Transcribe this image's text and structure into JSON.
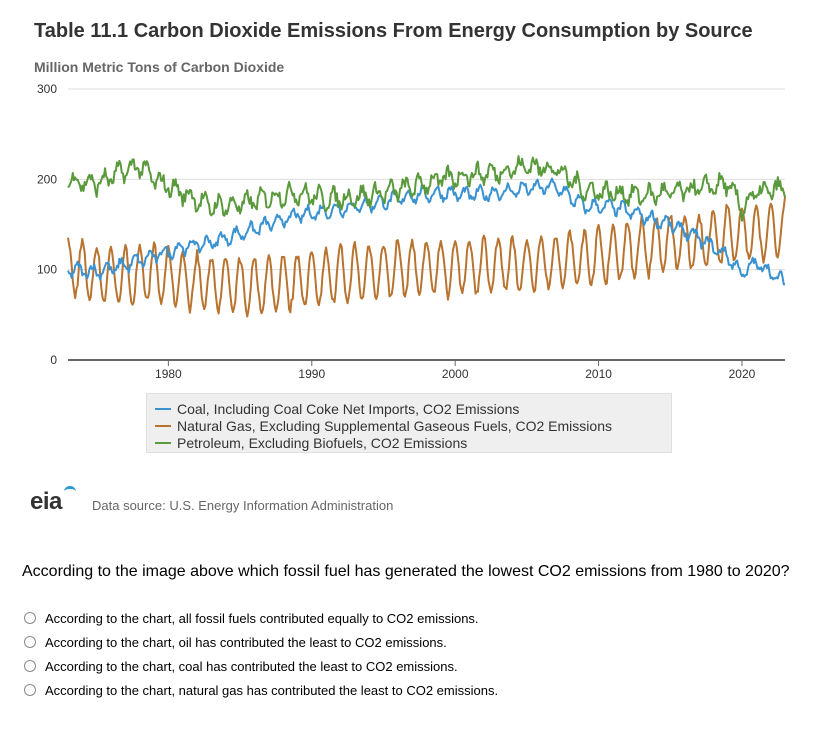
{
  "chart_data": {
    "type": "line",
    "title": "Table 11.1 Carbon Dioxide Emissions From Energy Consumption by Source",
    "ylabel": "Million Metric Tons of Carbon Dioxide",
    "xlabel": "",
    "ylim": [
      0,
      300
    ],
    "y_ticks": [
      "0",
      "100",
      "200",
      "300"
    ],
    "xlim": [
      1973,
      2023
    ],
    "x_ticks": [
      "1980",
      "1990",
      "2000",
      "2010",
      "2020"
    ],
    "gridlines": "horizontal",
    "legend_position": "bottom",
    "series": [
      {
        "name": "Coal, Including Coal Coke Net Imports, CO2 Emissions",
        "color": "#3a93d0",
        "x": [
          1973,
          1975,
          1977,
          1979,
          1981,
          1983,
          1985,
          1987,
          1989,
          1991,
          1993,
          1995,
          1997,
          1999,
          2001,
          2003,
          2005,
          2007,
          2009,
          2011,
          2013,
          2015,
          2017,
          2019,
          2020,
          2021,
          2023
        ],
        "values": [
          100,
          98,
          105,
          115,
          125,
          130,
          140,
          150,
          160,
          165,
          170,
          175,
          182,
          185,
          183,
          185,
          190,
          192,
          170,
          170,
          160,
          150,
          135,
          115,
          95,
          108,
          85
        ],
        "seasonal_amplitude": 18
      },
      {
        "name": "Natural Gas, Excluding Supplemental Gaseous Fuels, CO2 Emissions",
        "color": "#b8732f",
        "x": [
          1973,
          1975,
          1977,
          1979,
          1981,
          1983,
          1985,
          1987,
          1989,
          1991,
          1993,
          1995,
          1997,
          1999,
          2001,
          2003,
          2005,
          2007,
          2009,
          2011,
          2013,
          2015,
          2017,
          2019,
          2021,
          2023
        ],
        "values": [
          105,
          95,
          92,
          95,
          90,
          85,
          82,
          83,
          88,
          92,
          96,
          100,
          102,
          103,
          103,
          105,
          105,
          110,
          112,
          118,
          125,
          130,
          130,
          140,
          140,
          145
        ],
        "seasonal_amplitude": 30
      },
      {
        "name": "Petroleum, Excluding Biofuels, CO2 Emissions",
        "color": "#5a9a3c",
        "x": [
          1973,
          1975,
          1977,
          1978,
          1979,
          1981,
          1983,
          1985,
          1987,
          1989,
          1991,
          1993,
          1995,
          1997,
          1999,
          2001,
          2003,
          2005,
          2007,
          2008,
          2009,
          2011,
          2013,
          2015,
          2017,
          2019,
          2020,
          2021,
          2023
        ],
        "values": [
          200,
          195,
          210,
          215,
          200,
          185,
          170,
          172,
          180,
          185,
          178,
          180,
          185,
          192,
          200,
          205,
          208,
          215,
          212,
          200,
          188,
          185,
          182,
          185,
          190,
          195,
          168,
          185,
          190
        ],
        "seasonal_amplitude": 8
      }
    ],
    "source": "Data source: U.S. Energy Information Administration"
  },
  "logo_text": "eia",
  "quiz": {
    "question": "According to the image above which fossil fuel has generated the lowest CO2 emissions from 1980 to 2020?",
    "options": [
      "According to the chart, all fossil fuels contributed equally to CO2 emissions.",
      "According to the chart, oil has contributed the least to CO2 emissions.",
      "According to the chart, coal has contributed the least to CO2 emissions.",
      "According to the chart, natural gas has contributed the least to CO2 emissions."
    ]
  }
}
